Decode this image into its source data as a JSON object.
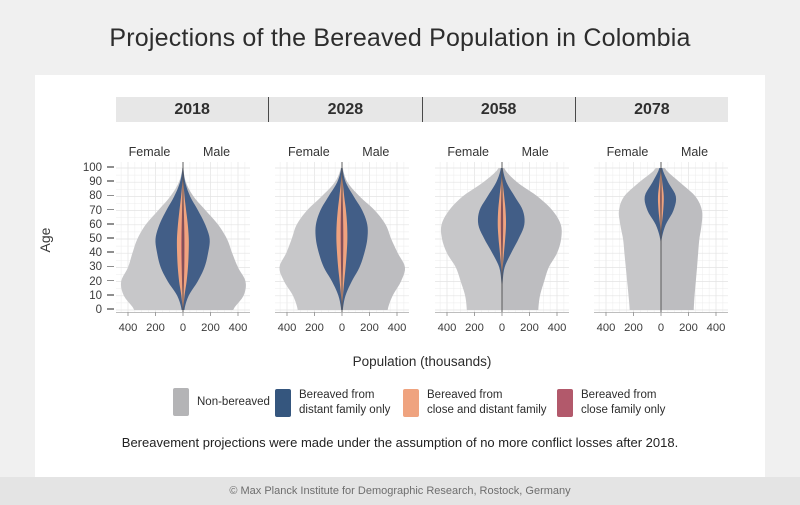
{
  "title": "Projections of the Bereaved Population in Colombia",
  "note": "Bereavement projections were made under the assumption of no more conflict losses after 2018.",
  "footer": "© Max Planck Institute for Demographic Research, Rostock, Germany",
  "axis": {
    "y_title": "Age",
    "x_title": "Population (thousands)",
    "female_label": "Female",
    "male_label": "Male",
    "y_ticks": [
      100,
      90,
      80,
      70,
      60,
      50,
      40,
      30,
      20,
      10,
      0
    ],
    "x_tick_values": [
      -400,
      -200,
      0,
      200,
      400
    ],
    "x_tick_labels": [
      "400",
      "200",
      "0",
      "200",
      "400"
    ]
  },
  "colors": {
    "non_bereaved_female": "#c7c7c9",
    "non_bereaved_male": "#bdbdc0",
    "distant": "#425e87",
    "close_distant": "#efa37f",
    "close": "#ac5465",
    "grid_minor": "#ececec",
    "grid_major": "#e3e3e3",
    "center_line": "#4f4f4f",
    "axis_line": "#a8a8a8",
    "tick": "#888888",
    "tick_label": "#3a3a3a"
  },
  "legend": [
    {
      "key": "non_bereaved",
      "color": "#b4b4b6",
      "lines": [
        "Non-bereaved"
      ]
    },
    {
      "key": "distant",
      "color": "#35567e",
      "lines": [
        "Bereaved from",
        "distant family only"
      ]
    },
    {
      "key": "close_distant",
      "color": "#efa37f",
      "lines": [
        "Bereaved from",
        "close and distant family"
      ]
    },
    {
      "key": "close",
      "color": "#b2596b",
      "lines": [
        "Bereaved from",
        "close family only"
      ]
    }
  ],
  "chart_data": {
    "type": "area",
    "subtype": "population-pyramid",
    "title": "Projections of the Bereaved Population in Colombia",
    "xlabel": "Population (thousands)",
    "ylabel": "Age",
    "unit": "thousands",
    "xlim": [
      -480,
      480
    ],
    "ylim": [
      0,
      100
    ],
    "ages": [
      0,
      10,
      20,
      30,
      40,
      50,
      60,
      70,
      80,
      90,
      100
    ],
    "series_meaning": "cumulative widths from center per side: close_only < close_and_distant < bereaved_any < total",
    "facets": [
      {
        "year": "2018",
        "female": {
          "total": [
            355,
            430,
            450,
            400,
            368,
            332,
            272,
            182,
            92,
            30,
            5
          ],
          "bereaved_any": [
            10,
            42,
            110,
            162,
            188,
            200,
            172,
            122,
            64,
            22,
            4
          ],
          "close_and_distant": [
            3,
            12,
            28,
            38,
            43,
            44,
            37,
            26,
            14,
            5,
            1
          ],
          "close_only": [
            1,
            3,
            7,
            10,
            12,
            12,
            10,
            7,
            4,
            1.5,
            0.3
          ]
        },
        "male": {
          "total": [
            365,
            440,
            455,
            400,
            358,
            320,
            256,
            166,
            76,
            21,
            3
          ],
          "bereaved_any": [
            10,
            41,
            106,
            156,
            182,
            194,
            162,
            110,
            52,
            16,
            3
          ],
          "close_and_distant": [
            3,
            11,
            26,
            36,
            41,
            42,
            35,
            23,
            11,
            4,
            0.8
          ],
          "close_only": [
            1,
            3,
            7,
            10,
            11,
            11,
            9,
            6,
            3,
            1,
            0.2
          ]
        }
      },
      {
        "year": "2028",
        "female": {
          "total": [
            322,
            356,
            420,
            455,
            406,
            366,
            330,
            256,
            148,
            52,
            9
          ],
          "bereaved_any": [
            6,
            26,
            72,
            132,
            168,
            190,
            190,
            158,
            98,
            35,
            6
          ],
          "close_and_distant": [
            2,
            7,
            17,
            28,
            36,
            41,
            39,
            31,
            19,
            8,
            1.5
          ],
          "close_only": [
            0.5,
            2,
            4,
            7,
            9,
            10,
            10,
            8,
            5,
            2,
            0.4
          ]
        },
        "male": {
          "total": [
            332,
            368,
            428,
            458,
            406,
            358,
            318,
            240,
            128,
            40,
            6
          ],
          "bereaved_any": [
            6,
            25,
            70,
            127,
            162,
            184,
            184,
            148,
            85,
            27,
            4
          ],
          "close_and_distant": [
            2,
            7,
            16,
            26,
            34,
            39,
            37,
            29,
            16,
            6,
            1
          ],
          "close_only": [
            0.5,
            2,
            4,
            7,
            9,
            10,
            9,
            7,
            4,
            1.5,
            0.3
          ]
        }
      },
      {
        "year": "2058",
        "female": {
          "total": [
            256,
            268,
            300,
            336,
            400,
            436,
            440,
            386,
            286,
            136,
            25
          ],
          "bereaved_any": [
            0,
            1,
            5,
            20,
            70,
            128,
            172,
            164,
            105,
            42,
            8
          ],
          "close_and_distant": [
            0,
            0.3,
            1.5,
            6,
            15,
            25,
            31,
            28,
            18,
            7,
            1.3
          ],
          "close_only": [
            0,
            0.1,
            0.5,
            2,
            4.5,
            7.5,
            9,
            8,
            5,
            2,
            0.3
          ]
        },
        "male": {
          "total": [
            264,
            276,
            306,
            340,
            400,
            430,
            428,
            368,
            258,
            110,
            16
          ],
          "bereaved_any": [
            0,
            1,
            5,
            19,
            66,
            120,
            162,
            152,
            92,
            32,
            5
          ],
          "close_and_distant": [
            0,
            0.3,
            1.4,
            5.5,
            14,
            23,
            29,
            26,
            16,
            5.5,
            1
          ],
          "close_only": [
            0,
            0.1,
            0.5,
            1.8,
            4,
            7,
            8.5,
            7.5,
            4.2,
            1.6,
            0.2
          ]
        }
      },
      {
        "year": "2078",
        "female": {
          "total": [
            228,
            236,
            246,
            256,
            266,
            276,
            296,
            306,
            268,
            158,
            38
          ],
          "bereaved_any": [
            0,
            0,
            0,
            0,
            1,
            6,
            38,
            98,
            118,
            62,
            12
          ],
          "close_and_distant": [
            0,
            0,
            0,
            0,
            0.2,
            1.2,
            7,
            18,
            22,
            11,
            2.5
          ],
          "close_only": [
            0,
            0,
            0,
            0,
            0,
            0.3,
            2,
            4.5,
            6,
            3,
            0.7
          ]
        },
        "male": {
          "total": [
            238,
            244,
            253,
            262,
            270,
            279,
            295,
            298,
            250,
            136,
            28
          ],
          "bereaved_any": [
            0,
            0,
            0,
            0,
            1,
            5,
            34,
            90,
            108,
            52,
            9
          ],
          "close_and_distant": [
            0,
            0,
            0,
            0,
            0.2,
            1,
            6,
            16,
            20,
            9,
            2
          ],
          "close_only": [
            0,
            0,
            0,
            0,
            0,
            0.3,
            1.8,
            4,
            5,
            2.5,
            0.5
          ]
        }
      }
    ]
  }
}
